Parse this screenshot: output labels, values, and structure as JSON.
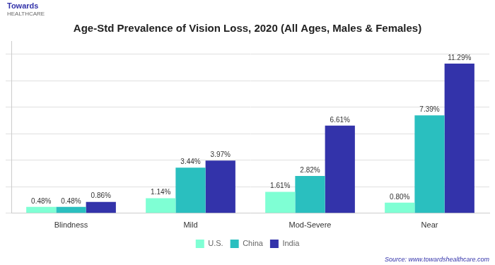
{
  "chart_data": {
    "type": "bar",
    "title": "Age-Std Prevalence of Vision Loss, 2020 (All Ages, Males & Females)",
    "categories": [
      "Blindness",
      "Mild",
      "Mod-Severe",
      "Near"
    ],
    "series": [
      {
        "name": "U.S.",
        "color": "#7FFFD4",
        "values": [
          0.48,
          1.14,
          1.61,
          0.8
        ],
        "value_labels": [
          "0.48%",
          "1.14%",
          "1.61%",
          "0.80%"
        ]
      },
      {
        "name": "China",
        "color": "#2ABFBF",
        "values": [
          0.48,
          3.44,
          2.82,
          7.39
        ],
        "value_labels": [
          "0.48%",
          "3.44%",
          "2.82%",
          "7.39%"
        ]
      },
      {
        "name": "India",
        "color": "#3333AA",
        "values": [
          0.86,
          3.97,
          6.61,
          11.29
        ],
        "value_labels": [
          "0.86%",
          "3.97%",
          "6.61%",
          "11.29%"
        ]
      }
    ],
    "ylim": [
      0,
      13
    ],
    "yticks": [
      0,
      2,
      4,
      6,
      8,
      10,
      12
    ],
    "grid": true,
    "legend": "bottom",
    "data_labels": true,
    "tick_labels": "x",
    "annotations": [
      "Towards",
      "HEALTHCARE",
      "Source: www.towardshealthcare.com"
    ]
  }
}
